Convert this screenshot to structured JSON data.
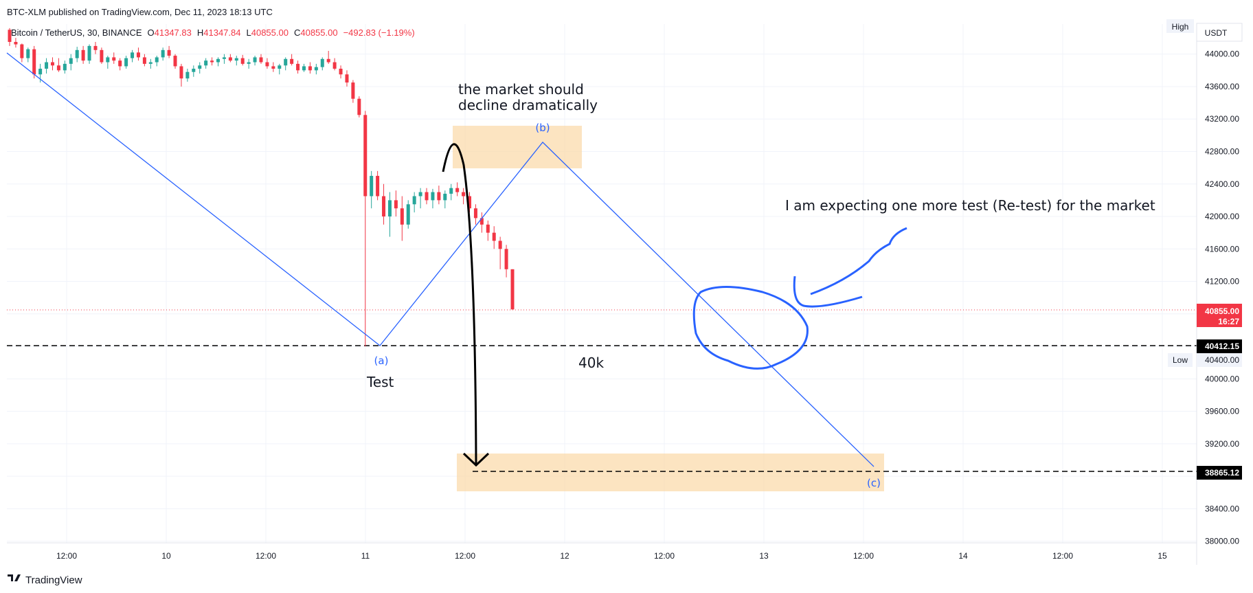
{
  "header": {
    "published": "BTC-XLM published on TradingView.com, Dec 11, 2023 18:13 UTC",
    "symbol": "Bitcoin / TetherUS, 30, BINANCE",
    "open_label": "O",
    "open": "41347.83",
    "high_label": "H",
    "high": "41347.84",
    "low_label": "L",
    "low": "40855.00",
    "close_label": "C",
    "close": "40855.00",
    "change": "−492.83 (−1.19%)"
  },
  "scale": {
    "currency": "USDT",
    "high_button": "High",
    "low_button": "Low"
  },
  "footer": {
    "brand": "TradingView"
  },
  "colors": {
    "up": "#26a69a",
    "down": "#f23645",
    "drawing": "#2962ff",
    "zone": "#fbd9a7",
    "black": "#131722"
  },
  "chart_data": {
    "type": "candlestick",
    "symbol": "BTCUSDT",
    "interval": "30",
    "ylim": [
      37980,
      44370
    ],
    "y_ticks": [
      "44000.00",
      "43600.00",
      "43200.00",
      "42800.00",
      "42400.00",
      "42000.00",
      "41600.00",
      "41200.00",
      "40800.00",
      "40400.00",
      "40000.00",
      "39600.00",
      "39200.00",
      "38800.00",
      "38400.00",
      "38000.00"
    ],
    "x_ticks": [
      "12:00",
      "10",
      "12:00",
      "11",
      "12:00",
      "12",
      "12:00",
      "13",
      "12:00",
      "14",
      "12:00",
      "15"
    ],
    "candles_approx": [
      [
        44300,
        44320,
        44100,
        44150
      ],
      [
        44150,
        44200,
        44080,
        44120
      ],
      [
        44120,
        44130,
        43900,
        43950
      ],
      [
        43950,
        44080,
        43900,
        44060
      ],
      [
        44060,
        44100,
        43700,
        43750
      ],
      [
        43750,
        43880,
        43650,
        43820
      ],
      [
        43820,
        43950,
        43760,
        43900
      ],
      [
        43900,
        43960,
        43800,
        43860
      ],
      [
        43860,
        43950,
        43780,
        43800
      ],
      [
        43800,
        43920,
        43760,
        43880
      ],
      [
        43880,
        44000,
        43800,
        43950
      ],
      [
        43950,
        44090,
        43900,
        44050
      ],
      [
        44050,
        44100,
        43880,
        43920
      ],
      [
        43920,
        44120,
        43880,
        44100
      ],
      [
        44100,
        44150,
        44000,
        44050
      ],
      [
        44050,
        44080,
        43880,
        43900
      ],
      [
        43900,
        43980,
        43820,
        43960
      ],
      [
        43960,
        44020,
        43880,
        43920
      ],
      [
        43920,
        43950,
        43800,
        43850
      ],
      [
        43850,
        43980,
        43820,
        43950
      ],
      [
        43950,
        44050,
        43900,
        44020
      ],
      [
        44020,
        44080,
        43920,
        43960
      ],
      [
        43960,
        44000,
        43850,
        43880
      ],
      [
        43880,
        43940,
        43820,
        43900
      ],
      [
        43900,
        43980,
        43850,
        43960
      ],
      [
        43960,
        44080,
        43920,
        44050
      ],
      [
        44050,
        44100,
        43950,
        43980
      ],
      [
        43980,
        44000,
        43820,
        43850
      ],
      [
        43850,
        43880,
        43600,
        43700
      ],
      [
        43700,
        43820,
        43660,
        43780
      ],
      [
        43780,
        43860,
        43720,
        43820
      ],
      [
        43820,
        43900,
        43760,
        43860
      ],
      [
        43860,
        43950,
        43820,
        43920
      ],
      [
        43920,
        43960,
        43860,
        43900
      ],
      [
        43900,
        43960,
        43850,
        43940
      ],
      [
        43940,
        44000,
        43880,
        43960
      ],
      [
        43960,
        44000,
        43900,
        43920
      ],
      [
        43920,
        43980,
        43860,
        43950
      ],
      [
        43950,
        43990,
        43860,
        43880
      ],
      [
        43880,
        43940,
        43820,
        43900
      ],
      [
        43900,
        43980,
        43860,
        43960
      ],
      [
        43960,
        44000,
        43880,
        43900
      ],
      [
        43900,
        43950,
        43820,
        43850
      ],
      [
        43850,
        43900,
        43780,
        43820
      ],
      [
        43820,
        43880,
        43750,
        43860
      ],
      [
        43860,
        43960,
        43800,
        43940
      ],
      [
        43940,
        44000,
        43860,
        43880
      ],
      [
        43880,
        43920,
        43760,
        43800
      ],
      [
        43800,
        43880,
        43780,
        43850
      ],
      [
        43850,
        43900,
        43760,
        43800
      ],
      [
        43800,
        43880,
        43750,
        43840
      ],
      [
        43840,
        43960,
        43800,
        43940
      ],
      [
        43940,
        44040,
        43880,
        43900
      ],
      [
        43900,
        43950,
        43800,
        43820
      ],
      [
        43820,
        43860,
        43700,
        43750
      ],
      [
        43750,
        43800,
        43600,
        43650
      ],
      [
        43650,
        43680,
        43400,
        43450
      ],
      [
        43450,
        43480,
        43220,
        43250
      ],
      [
        43250,
        43300,
        40400,
        42250
      ],
      [
        42250,
        42560,
        42100,
        42500
      ],
      [
        42500,
        42560,
        42200,
        42250
      ],
      [
        42250,
        42400,
        41900,
        42000
      ],
      [
        42000,
        42300,
        41750,
        42200
      ],
      [
        42200,
        42320,
        42000,
        42100
      ],
      [
        42100,
        42250,
        41700,
        41900
      ],
      [
        41900,
        42200,
        41850,
        42150
      ],
      [
        42150,
        42300,
        42050,
        42250
      ],
      [
        42250,
        42350,
        42100,
        42300
      ],
      [
        42300,
        42350,
        42150,
        42200
      ],
      [
        42200,
        42340,
        42100,
        42300
      ],
      [
        42300,
        42380,
        42150,
        42200
      ],
      [
        42200,
        42320,
        42100,
        42280
      ],
      [
        42280,
        42400,
        42200,
        42350
      ],
      [
        42350,
        42420,
        42250,
        42300
      ],
      [
        42300,
        42350,
        42150,
        42250
      ],
      [
        42250,
        42300,
        42050,
        42100
      ],
      [
        42100,
        42150,
        41900,
        41980
      ],
      [
        41980,
        42050,
        41800,
        41900
      ],
      [
        41900,
        41950,
        41700,
        41800
      ],
      [
        41800,
        41880,
        41600,
        41700
      ],
      [
        41700,
        41750,
        41350,
        41600
      ],
      [
        41600,
        41650,
        41250,
        41350
      ],
      [
        41350,
        41350,
        40855,
        40855
      ]
    ],
    "levels": [
      {
        "label": "40412.15",
        "value": 40412.15,
        "style": "dashed"
      },
      {
        "label": "38865.12",
        "value": 38865.12,
        "style": "dashed"
      }
    ],
    "last_price": {
      "label": "40855.00",
      "countdown": "16:27",
      "value": 40855.0
    },
    "low_price": {
      "label": "40400.00",
      "value": 40400.0
    },
    "wave_points": [
      {
        "label": "(a)",
        "value": 40412
      },
      {
        "label": "(b)",
        "value": 42900
      },
      {
        "label": "(c)",
        "value": 38870
      }
    ],
    "annotations": {
      "decline": [
        "the market should",
        "decline dramatically"
      ],
      "expect": "I am expecting one more test (Re-test) for the market",
      "test": "Test",
      "forty_k": "40k"
    }
  }
}
